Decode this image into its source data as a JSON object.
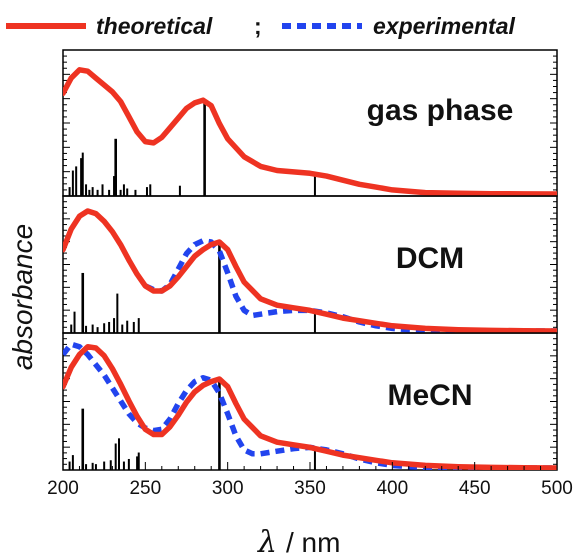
{
  "chart_data": {
    "type": "line",
    "xlabel_symbol": "λ",
    "xlabel_unit": "/  nm",
    "ylabel": "absorbance",
    "xlim": [
      200,
      500
    ],
    "x_ticks": [
      200,
      250,
      300,
      350,
      400,
      450,
      500
    ],
    "legend": {
      "placement": "top",
      "theoretical": "theoretical",
      "separator": ";",
      "experimental": "experimental"
    },
    "colors": {
      "theoretical": "#ee3322",
      "experimental": "#2244ee",
      "sticks": "#000000"
    },
    "panels": [
      {
        "label": "gas phase",
        "theoretical": {
          "x": [
            200,
            205,
            210,
            215,
            220,
            225,
            230,
            235,
            240,
            245,
            250,
            255,
            260,
            265,
            270,
            275,
            280,
            285,
            290,
            295,
            300,
            310,
            320,
            330,
            340,
            350,
            360,
            370,
            380,
            390,
            400,
            410,
            420,
            440,
            460,
            480,
            500
          ],
          "y": [
            0.73,
            0.84,
            0.9,
            0.89,
            0.84,
            0.79,
            0.74,
            0.67,
            0.56,
            0.45,
            0.38,
            0.37,
            0.41,
            0.48,
            0.55,
            0.62,
            0.66,
            0.68,
            0.64,
            0.51,
            0.4,
            0.27,
            0.2,
            0.17,
            0.16,
            0.15,
            0.13,
            0.1,
            0.07,
            0.05,
            0.03,
            0.02,
            0.01,
            0.005,
            0.002,
            0.001,
            0.0
          ]
        },
        "sticks": [
          [
            204,
            0.05
          ],
          [
            206,
            0.17
          ],
          [
            208,
            0.2
          ],
          [
            211,
            0.26
          ],
          [
            212,
            0.3
          ],
          [
            214,
            0.07
          ],
          [
            216,
            0.03
          ],
          [
            218,
            0.05
          ],
          [
            221,
            0.03
          ],
          [
            224,
            0.07
          ],
          [
            228,
            0.03
          ],
          [
            231,
            0.13
          ],
          [
            232,
            0.4
          ],
          [
            235,
            0.03
          ],
          [
            237,
            0.07
          ],
          [
            239,
            0.04
          ],
          [
            244,
            0.03
          ],
          [
            251,
            0.05
          ],
          [
            253,
            0.07
          ],
          [
            271,
            0.06
          ],
          [
            286,
            0.66
          ],
          [
            353,
            0.14
          ]
        ]
      },
      {
        "label": "DCM",
        "theoretical": {
          "x": [
            200,
            205,
            210,
            215,
            220,
            225,
            230,
            235,
            240,
            245,
            250,
            255,
            260,
            265,
            270,
            275,
            280,
            285,
            290,
            295,
            300,
            305,
            310,
            320,
            330,
            340,
            350,
            360,
            370,
            380,
            390,
            400,
            420,
            440,
            460,
            480,
            500
          ],
          "y": [
            0.63,
            0.79,
            0.89,
            0.93,
            0.91,
            0.85,
            0.77,
            0.67,
            0.55,
            0.44,
            0.35,
            0.31,
            0.31,
            0.35,
            0.42,
            0.5,
            0.58,
            0.63,
            0.67,
            0.69,
            0.63,
            0.5,
            0.38,
            0.25,
            0.2,
            0.18,
            0.16,
            0.13,
            0.1,
            0.08,
            0.06,
            0.04,
            0.02,
            0.01,
            0.005,
            0.002,
            0.0
          ]
        },
        "experimental": {
          "x": [
            250,
            255,
            260,
            265,
            270,
            275,
            280,
            285,
            290,
            295,
            300,
            305,
            310,
            315,
            320,
            330,
            340,
            350,
            360,
            370,
            380,
            390,
            400,
            410,
            420,
            440,
            460,
            480,
            500
          ],
          "y": [
            0.35,
            0.32,
            0.31,
            0.36,
            0.48,
            0.6,
            0.67,
            0.7,
            0.69,
            0.62,
            0.45,
            0.27,
            0.16,
            0.12,
            0.13,
            0.15,
            0.16,
            0.16,
            0.14,
            0.11,
            0.07,
            0.04,
            0.02,
            0.01,
            0.005,
            0.002,
            0.001,
            0.0,
            0.0
          ]
        },
        "sticks": [
          [
            205,
            0.05
          ],
          [
            207,
            0.15
          ],
          [
            212,
            0.45
          ],
          [
            214,
            0.04
          ],
          [
            218,
            0.05
          ],
          [
            221,
            0.03
          ],
          [
            225,
            0.06
          ],
          [
            228,
            0.07
          ],
          [
            231,
            0.1
          ],
          [
            233,
            0.29
          ],
          [
            236,
            0.05
          ],
          [
            239,
            0.08
          ],
          [
            243,
            0.07
          ],
          [
            246,
            0.1
          ],
          [
            295,
            0.69
          ],
          [
            353,
            0.14
          ]
        ]
      },
      {
        "label": "MeCN",
        "theoretical": {
          "x": [
            200,
            205,
            210,
            215,
            220,
            225,
            230,
            235,
            240,
            245,
            250,
            255,
            260,
            265,
            270,
            275,
            280,
            285,
            290,
            295,
            300,
            305,
            310,
            320,
            330,
            340,
            350,
            360,
            370,
            380,
            390,
            400,
            420,
            440,
            460,
            480,
            500
          ],
          "y": [
            0.63,
            0.78,
            0.88,
            0.94,
            0.93,
            0.87,
            0.77,
            0.65,
            0.52,
            0.4,
            0.3,
            0.26,
            0.26,
            0.32,
            0.41,
            0.51,
            0.59,
            0.64,
            0.67,
            0.69,
            0.63,
            0.5,
            0.38,
            0.25,
            0.2,
            0.18,
            0.16,
            0.13,
            0.1,
            0.08,
            0.06,
            0.04,
            0.02,
            0.01,
            0.005,
            0.002,
            0.0
          ]
        },
        "experimental": {
          "x": [
            200,
            205,
            210,
            215,
            220,
            225,
            230,
            235,
            240,
            245,
            250,
            255,
            260,
            265,
            270,
            275,
            280,
            285,
            290,
            295,
            300,
            305,
            310,
            315,
            320,
            330,
            340,
            350,
            360,
            370,
            380,
            390,
            400,
            410,
            420,
            440,
            460,
            480,
            500
          ],
          "y": [
            0.88,
            0.96,
            0.94,
            0.88,
            0.8,
            0.72,
            0.62,
            0.52,
            0.42,
            0.35,
            0.31,
            0.29,
            0.3,
            0.38,
            0.5,
            0.6,
            0.67,
            0.7,
            0.68,
            0.58,
            0.42,
            0.25,
            0.14,
            0.11,
            0.11,
            0.13,
            0.15,
            0.16,
            0.14,
            0.11,
            0.07,
            0.04,
            0.02,
            0.01,
            0.005,
            0.002,
            0.001,
            0.0,
            0.0
          ]
        },
        "sticks": [
          [
            204,
            0.05
          ],
          [
            206,
            0.1
          ],
          [
            212,
            0.46
          ],
          [
            214,
            0.03
          ],
          [
            218,
            0.04
          ],
          [
            220,
            0.03
          ],
          [
            225,
            0.05
          ],
          [
            229,
            0.06
          ],
          [
            232,
            0.19
          ],
          [
            234,
            0.23
          ],
          [
            237,
            0.05
          ],
          [
            240,
            0.07
          ],
          [
            245,
            0.09
          ],
          [
            246,
            0.12
          ],
          [
            295,
            0.69
          ],
          [
            353,
            0.14
          ]
        ]
      }
    ]
  }
}
